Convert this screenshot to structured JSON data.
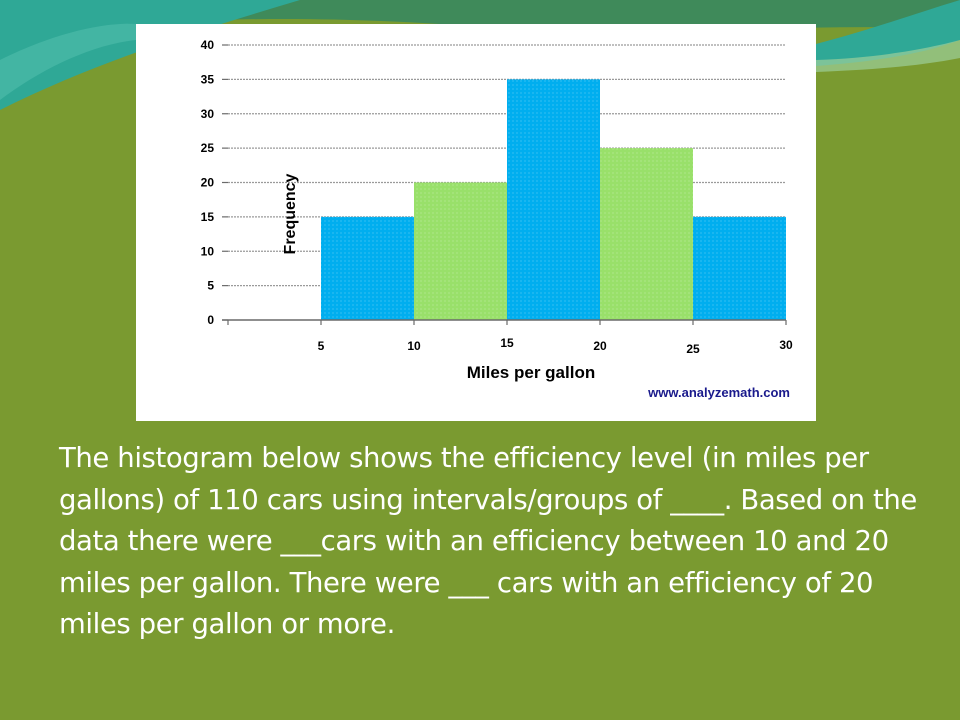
{
  "slide": {
    "question": "The histogram below shows the efficiency level (in miles per gallons) of 110 cars using intervals/groups of ____.   Based on the data there were ___cars with an efficiency between 10 and 20 miles per gallon.   There were ___ cars with an efficiency of 20 miles per gallon or more.",
    "colors": {
      "background": "#7a9a30",
      "wave_teal": "#2fa896",
      "wave_dark": "#3f8a5a",
      "wave_light": "#9dcf9a"
    }
  },
  "chart_data": {
    "type": "bar",
    "title": "",
    "xlabel": "Miles per gallon",
    "ylabel": "Frequency",
    "watermark": "www.analyzemath.com",
    "xlim": [
      0,
      30
    ],
    "ylim": [
      0,
      40
    ],
    "x_ticks": [
      5,
      10,
      15,
      20,
      25,
      30
    ],
    "y_ticks": [
      0,
      5,
      10,
      15,
      20,
      25,
      30,
      35,
      40
    ],
    "bins": [
      {
        "from": 5,
        "to": 10,
        "value": 15,
        "color": "#00aeef"
      },
      {
        "from": 10,
        "to": 15,
        "value": 20,
        "color": "#99e06a"
      },
      {
        "from": 15,
        "to": 20,
        "value": 35,
        "color": "#00aeef"
      },
      {
        "from": 20,
        "to": 25,
        "value": 25,
        "color": "#99e06a"
      },
      {
        "from": 25,
        "to": 30,
        "value": 15,
        "color": "#00aeef"
      }
    ],
    "grid": true,
    "legend": "none"
  }
}
